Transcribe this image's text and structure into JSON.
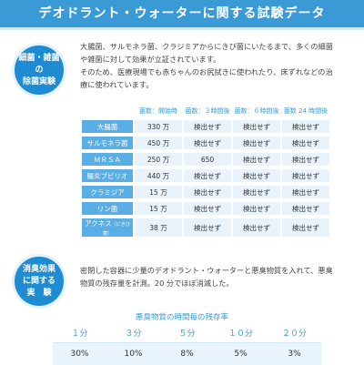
{
  "header": {
    "title": "デオドラント・ウォーターに関する試験データ"
  },
  "section1": {
    "badge": [
      "細菌・雑菌",
      "の",
      "除菌実験"
    ],
    "description": [
      "大腸菌、サルモネラ菌、クラジミアからにきび菌にいたるまで、多くの細菌",
      "や雑菌に対して効果が立証されています。",
      "そのため、医療現場でも赤ちゃんのお尻拭きに使われたり、床ずれなどの治",
      "療に使われています。"
    ],
    "table": {
      "headers": [
        "菌数：開始時",
        "菌数：３時間後",
        "菌数：６時間後",
        "菌数 24 時間後"
      ],
      "rows": [
        {
          "name": "大腸菌",
          "name_small": "",
          "values": [
            "330 万",
            "検出せず",
            "検出せず",
            "検出せず"
          ]
        },
        {
          "name": "サルモネラ菌",
          "name_small": "",
          "values": [
            "450 万",
            "検出せず",
            "検出せず",
            "検出せず"
          ]
        },
        {
          "name": "ＭＲＳＡ",
          "name_small": "",
          "values": [
            "250 万",
            "650",
            "検出せず",
            "検出せず"
          ]
        },
        {
          "name": "腸炎ブビリオ",
          "name_small": "",
          "values": [
            "440 万",
            "検出せず",
            "検出せず",
            "検出せず"
          ]
        },
        {
          "name": "クラミジア",
          "name_small": "",
          "values": [
            "15 万",
            "検出せず",
            "検出せず",
            "検出せず"
          ]
        },
        {
          "name": "リン菌",
          "name_small": "",
          "values": [
            "15 万",
            "検出せず",
            "検出せず",
            "検出せず"
          ]
        },
        {
          "name": "アクネス",
          "name_small": "（にきび菌）",
          "values": [
            "38 万",
            "検出せず",
            "検出せず",
            "検出せず"
          ]
        }
      ]
    }
  },
  "section2": {
    "badge": [
      "消臭効果",
      "に関する",
      "実　験"
    ],
    "description": [
      "密閉した容器に少量のデオドラント・ウォーターと悪臭物質を入れて、悪臭",
      "物質の残存量を計測。20 分でほぼ消滅した。"
    ],
    "table_title": "悪臭物質の時間毎の残存率",
    "headers": [
      "１分",
      "３分",
      "５分",
      "１０分",
      "２０分"
    ],
    "values": [
      "30%",
      "10%",
      "8%",
      "5%",
      "3%"
    ]
  }
}
